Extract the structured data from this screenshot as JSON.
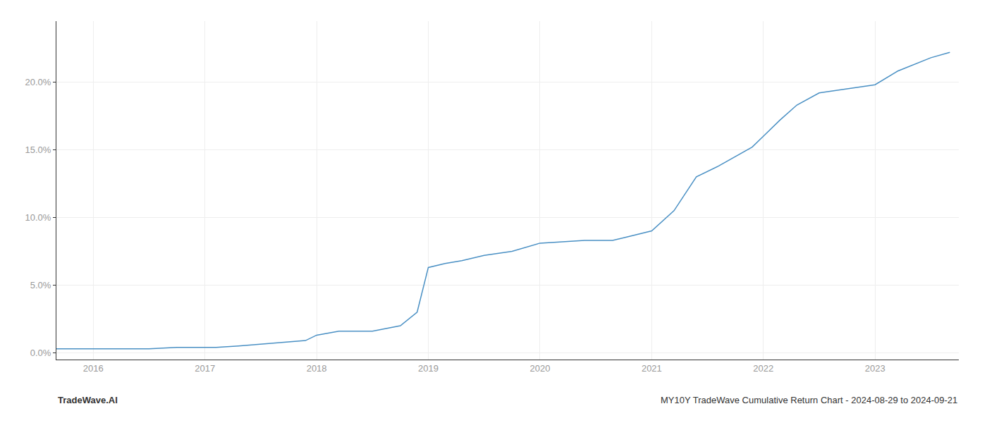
{
  "chart_data": {
    "type": "line",
    "x": [
      2015.67,
      2016.0,
      2016.2,
      2016.5,
      2016.75,
      2017.0,
      2017.1,
      2017.3,
      2017.6,
      2017.9,
      2018.0,
      2018.2,
      2018.5,
      2018.75,
      2018.9,
      2019.0,
      2019.15,
      2019.3,
      2019.5,
      2019.75,
      2020.0,
      2020.2,
      2020.4,
      2020.5,
      2020.65,
      2020.75,
      2021.0,
      2021.2,
      2021.4,
      2021.6,
      2021.75,
      2021.9,
      2022.0,
      2022.15,
      2022.3,
      2022.5,
      2022.75,
      2023.0,
      2023.2,
      2023.5,
      2023.67
    ],
    "values": [
      0.003,
      0.003,
      0.003,
      0.003,
      0.004,
      0.004,
      0.004,
      0.005,
      0.007,
      0.009,
      0.013,
      0.016,
      0.016,
      0.02,
      0.03,
      0.063,
      0.066,
      0.068,
      0.072,
      0.075,
      0.081,
      0.082,
      0.083,
      0.083,
      0.083,
      0.085,
      0.09,
      0.105,
      0.13,
      0.138,
      0.145,
      0.152,
      0.16,
      0.172,
      0.183,
      0.192,
      0.195,
      0.198,
      0.208,
      0.218,
      0.222
    ],
    "color": "#4a90c4",
    "xlim": [
      2015.67,
      2023.75
    ],
    "xticks": [
      2016,
      2017,
      2018,
      2019,
      2020,
      2021,
      2022,
      2023
    ],
    "ylim": [
      -0.005,
      0.245
    ],
    "yticks": [
      {
        "value": 0.0,
        "label": "0.0%"
      },
      {
        "value": 0.05,
        "label": "5.0%"
      },
      {
        "value": 0.1,
        "label": "10.0%"
      },
      {
        "value": 0.15,
        "label": "15.0%"
      },
      {
        "value": 0.2,
        "label": "20.0%"
      }
    ],
    "grid": true,
    "annotations": [
      "TradeWave.AI",
      "MY10Y TradeWave Cumulative Return Chart - 2024-08-29 to 2024-09-21"
    ]
  }
}
